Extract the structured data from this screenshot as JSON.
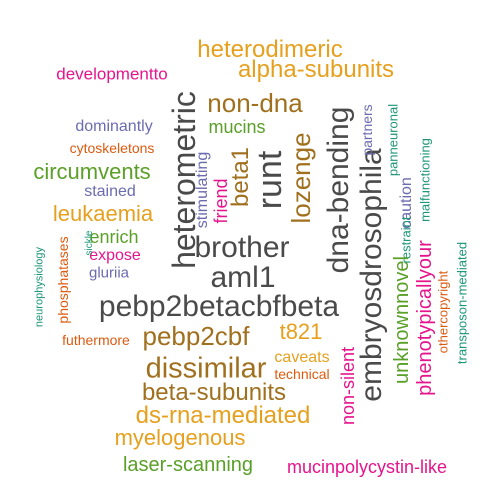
{
  "colors": {
    "dark_gray": "#4a4a4a",
    "gold": "#e6a01e",
    "brown": "#a0701e",
    "green": "#5aa028",
    "pink": "#e6148c",
    "purple": "#6b6bb0",
    "orange": "#dc5a10",
    "teal": "#1e9678"
  },
  "words": [
    {
      "text": "heterodimeric",
      "color": "gold",
      "orientation": "horizontal"
    },
    {
      "text": "developmentto",
      "color": "pink",
      "orientation": "horizontal"
    },
    {
      "text": "alpha-subunits",
      "color": "gold",
      "orientation": "horizontal"
    },
    {
      "text": "non-dna",
      "color": "brown",
      "orientation": "horizontal"
    },
    {
      "text": "mucins",
      "color": "green",
      "orientation": "horizontal"
    },
    {
      "text": "dominantly",
      "color": "purple",
      "orientation": "horizontal"
    },
    {
      "text": "cytoskeletons",
      "color": "orange",
      "orientation": "horizontal"
    },
    {
      "text": "circumvents",
      "color": "green",
      "orientation": "horizontal"
    },
    {
      "text": "stained",
      "color": "purple",
      "orientation": "horizontal"
    },
    {
      "text": "leukaemia",
      "color": "gold",
      "orientation": "horizontal"
    },
    {
      "text": "enrich",
      "color": "green",
      "orientation": "horizontal"
    },
    {
      "text": "expose",
      "color": "pink",
      "orientation": "horizontal"
    },
    {
      "text": "gluriia",
      "color": "purple",
      "orientation": "horizontal"
    },
    {
      "text": "brother",
      "color": "dark_gray",
      "orientation": "horizontal"
    },
    {
      "text": "aml1",
      "color": "dark_gray",
      "orientation": "horizontal"
    },
    {
      "text": "pebp2betacbfbeta",
      "color": "dark_gray",
      "orientation": "horizontal"
    },
    {
      "text": "pebp2cbf",
      "color": "brown",
      "orientation": "horizontal"
    },
    {
      "text": "t821",
      "color": "gold",
      "orientation": "horizontal"
    },
    {
      "text": "futhermore",
      "color": "orange",
      "orientation": "horizontal"
    },
    {
      "text": "dissimilar",
      "color": "brown",
      "orientation": "horizontal"
    },
    {
      "text": "caveats",
      "color": "gold",
      "orientation": "horizontal"
    },
    {
      "text": "technical",
      "color": "orange",
      "orientation": "horizontal"
    },
    {
      "text": "beta-subunits",
      "color": "brown",
      "orientation": "horizontal"
    },
    {
      "text": "ds-rna-mediated",
      "color": "gold",
      "orientation": "horizontal"
    },
    {
      "text": "myelogenous",
      "color": "gold",
      "orientation": "horizontal"
    },
    {
      "text": "laser-scanning",
      "color": "green",
      "orientation": "horizontal"
    },
    {
      "text": "mucinpolycystin-like",
      "color": "pink",
      "orientation": "horizontal"
    },
    {
      "text": "heterometric",
      "color": "dark_gray",
      "orientation": "vertical"
    },
    {
      "text": "stimulating",
      "color": "purple",
      "orientation": "vertical"
    },
    {
      "text": "friend",
      "color": "pink",
      "orientation": "vertical"
    },
    {
      "text": "beta1",
      "color": "brown",
      "orientation": "vertical"
    },
    {
      "text": "runt",
      "color": "dark_gray",
      "orientation": "vertical"
    },
    {
      "text": "lozenge",
      "color": "brown",
      "orientation": "vertical"
    },
    {
      "text": "dna-bending",
      "color": "dark_gray",
      "orientation": "vertical"
    },
    {
      "text": "embryosdrosophila",
      "color": "dark_gray",
      "orientation": "vertical"
    },
    {
      "text": "partners",
      "color": "purple",
      "orientation": "vertical"
    },
    {
      "text": "panneuronal",
      "color": "teal",
      "orientation": "vertical"
    },
    {
      "text": "caution",
      "color": "purple",
      "orientation": "vertical"
    },
    {
      "text": "restraint",
      "color": "teal",
      "orientation": "vertical"
    },
    {
      "text": "malfunctioning",
      "color": "teal",
      "orientation": "vertical"
    },
    {
      "text": "unknownnovel",
      "color": "green",
      "orientation": "vertical"
    },
    {
      "text": "phenotypicallyour",
      "color": "pink",
      "orientation": "vertical"
    },
    {
      "text": "othercopyright",
      "color": "orange",
      "orientation": "vertical"
    },
    {
      "text": "transposon-mediated",
      "color": "teal",
      "orientation": "vertical"
    },
    {
      "text": "non-silent",
      "color": "pink",
      "orientation": "vertical"
    },
    {
      "text": "neurophysiology",
      "color": "teal",
      "orientation": "vertical"
    },
    {
      "text": "phosphatases",
      "color": "orange",
      "orientation": "vertical"
    },
    {
      "text": "sickle",
      "color": "teal",
      "orientation": "vertical"
    }
  ]
}
